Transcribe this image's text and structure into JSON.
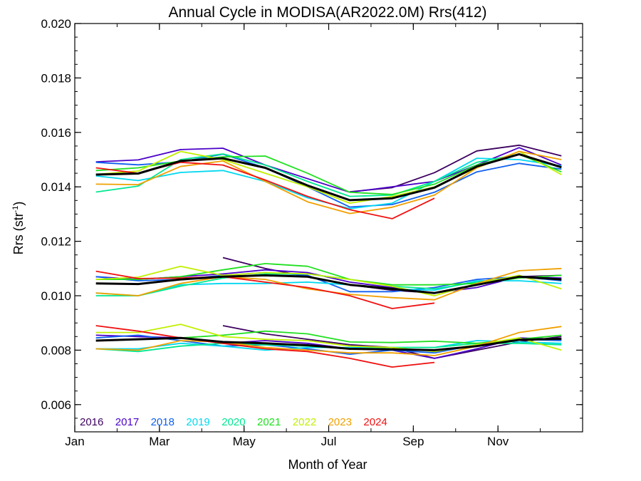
{
  "chart_data": {
    "type": "line",
    "title": "Annual Cycle in MODISA(AR2022.0M) Rrs(412)",
    "xlabel": "Month of Year",
    "ylabel_main": "Rrs (str",
    "ylabel_sup": "-1",
    "ylabel_close": ")",
    "xlim": [
      0.5,
      12.5
    ],
    "ylim": [
      0.005,
      0.02
    ],
    "x_ticks": [
      {
        "value": 0.5,
        "label": "Jan"
      },
      {
        "value": 2.5,
        "label": "Mar"
      },
      {
        "value": 4.5,
        "label": "May"
      },
      {
        "value": 6.5,
        "label": "Jul"
      },
      {
        "value": 8.5,
        "label": "Sep"
      },
      {
        "value": 10.5,
        "label": "Nov"
      }
    ],
    "y_ticks": [
      0.006,
      0.008,
      0.01,
      0.012,
      0.014,
      0.016,
      0.018,
      0.02
    ],
    "y_tick_labels": [
      "0.006",
      "0.008",
      "0.010",
      "0.012",
      "0.014",
      "0.016",
      "0.018",
      "0.020"
    ],
    "x": [
      1,
      2,
      3,
      4,
      5,
      6,
      7,
      8,
      9,
      10,
      11,
      12
    ],
    "groups": [
      {
        "name": "upper",
        "series": [
          {
            "name": "2016",
            "color": "#3d0060",
            "values": [
              null,
              null,
              null,
              null,
              null,
              null,
              0.01382,
              0.01397,
              0.01452,
              0.01532,
              0.01553,
              0.01514
            ]
          },
          {
            "name": "2017",
            "color": "#4a00c8",
            "values": [
              0.01492,
              0.01499,
              0.01537,
              0.01542,
              0.0148,
              0.0143,
              0.0138,
              0.014,
              0.0142,
              0.0148,
              0.01544,
              0.0148
            ]
          },
          {
            "name": "2018",
            "color": "#1060f0",
            "values": [
              0.0149,
              0.01481,
              0.01492,
              0.0152,
              0.0147,
              0.014,
              0.01326,
              0.01335,
              0.0138,
              0.01455,
              0.01486,
              0.01465
            ]
          },
          {
            "name": "2019",
            "color": "#00d8f0",
            "values": [
              0.0144,
              0.01423,
              0.01453,
              0.0146,
              0.0142,
              0.0136,
              0.0132,
              0.0134,
              0.0142,
              0.01505,
              0.015,
              0.01477
            ]
          },
          {
            "name": "2020",
            "color": "#00e890",
            "values": [
              0.01381,
              0.01403,
              0.015,
              0.01521,
              0.0148,
              0.0142,
              0.01365,
              0.0137,
              0.0142,
              0.0149,
              0.0152,
              0.0147
            ]
          },
          {
            "name": "2021",
            "color": "#20e020",
            "values": [
              0.0146,
              0.0147,
              0.01495,
              0.0151,
              0.01513,
              0.0145,
              0.0138,
              0.01372,
              0.0141,
              0.0148,
              0.0152,
              0.01455
            ]
          },
          {
            "name": "2022",
            "color": "#c0f000",
            "values": [
              0.01446,
              0.01458,
              0.0153,
              0.015,
              0.0145,
              0.014,
              0.0134,
              0.01365,
              0.014,
              0.0147,
              0.0153,
              0.01445
            ]
          },
          {
            "name": "2023",
            "color": "#f0a000",
            "values": [
              0.0141,
              0.01408,
              0.01475,
              0.01495,
              0.0142,
              0.01345,
              0.01302,
              0.01325,
              0.0137,
              0.0147,
              0.0153,
              0.015
            ]
          },
          {
            "name": "2024",
            "color": "#f01010",
            "values": [
              0.0147,
              0.0145,
              0.0149,
              0.0148,
              0.01425,
              0.01365,
              0.01316,
              0.01283,
              0.01358,
              null,
              null,
              null
            ]
          },
          {
            "name": "mean",
            "color": "#000000",
            "width": 3,
            "values": [
              0.01445,
              0.01449,
              0.01495,
              0.01505,
              0.0147,
              0.01405,
              0.01351,
              0.01358,
              0.01397,
              0.01475,
              0.0152,
              0.01472
            ]
          }
        ]
      },
      {
        "name": "middle",
        "series": [
          {
            "name": "2016",
            "color": "#3d0060",
            "values": [
              null,
              null,
              null,
              0.0114,
              0.011,
              0.0107,
              0.0104,
              0.0102,
              0.0101,
              0.0104,
              0.0107,
              0.01075
            ]
          },
          {
            "name": "2017",
            "color": "#4a00c8",
            "values": [
              0.0107,
              0.0106,
              0.0107,
              0.0108,
              0.01095,
              0.01085,
              0.0105,
              0.0103,
              0.0101,
              0.0103,
              0.0107,
              0.01065
            ]
          },
          {
            "name": "2018",
            "color": "#1060f0",
            "values": [
              0.0107,
              0.01055,
              0.0106,
              0.01075,
              0.01085,
              0.01075,
              0.01015,
              0.01015,
              0.0103,
              0.0106,
              0.0107,
              0.01055
            ]
          },
          {
            "name": "2019",
            "color": "#00d8f0",
            "values": [
              0.0101,
              0.01,
              0.0104,
              0.01045,
              0.01045,
              0.0105,
              0.0104,
              0.01025,
              0.0102,
              0.01055,
              0.01055,
              0.01045
            ]
          },
          {
            "name": "2020",
            "color": "#00e890",
            "values": [
              0.01,
              0.01,
              0.01035,
              0.01065,
              0.0108,
              0.0108,
              0.0106,
              0.01035,
              0.01025,
              0.0105,
              0.0107,
              0.0106
            ]
          },
          {
            "name": "2021",
            "color": "#20e020",
            "values": [
              0.0106,
              0.0106,
              0.0107,
              0.01095,
              0.01118,
              0.01108,
              0.0106,
              0.0104,
              0.0104,
              0.01045,
              0.01065,
              0.01075
            ]
          },
          {
            "name": "2022",
            "color": "#c0f000",
            "values": [
              0.0106,
              0.01068,
              0.01108,
              0.01075,
              0.01085,
              0.0108,
              0.0106,
              0.01035,
              0.01,
              0.01045,
              0.01075,
              0.01025
            ]
          },
          {
            "name": "2023",
            "color": "#f0a000",
            "values": [
              0.0101,
              0.01,
              0.01045,
              0.0107,
              0.0106,
              0.01025,
              0.01005,
              0.00993,
              0.00985,
              0.01045,
              0.01092,
              0.011
            ]
          },
          {
            "name": "2024",
            "color": "#f01010",
            "values": [
              0.0109,
              0.01063,
              0.01065,
              0.0107,
              0.0105,
              0.0103,
              0.01,
              0.00953,
              0.00973,
              null,
              null,
              null
            ]
          },
          {
            "name": "mean",
            "color": "#000000",
            "width": 3,
            "values": [
              0.01045,
              0.01043,
              0.0106,
              0.0107,
              0.01075,
              0.0107,
              0.0104,
              0.01025,
              0.0101,
              0.0104,
              0.0107,
              0.0106
            ]
          }
        ]
      },
      {
        "name": "lower",
        "series": [
          {
            "name": "2016",
            "color": "#3d0060",
            "values": [
              null,
              null,
              null,
              0.0089,
              0.0086,
              0.0084,
              0.0082,
              0.0081,
              0.0077,
              0.008,
              0.0083,
              0.0085
            ]
          },
          {
            "name": "2017",
            "color": "#4a00c8",
            "values": [
              0.00855,
              0.0085,
              0.00845,
              0.00825,
              0.00835,
              0.00825,
              0.00805,
              0.008,
              0.0077,
              0.00805,
              0.00845,
              0.0084
            ]
          },
          {
            "name": "2018",
            "color": "#1060f0",
            "values": [
              0.00845,
              0.00855,
              0.00835,
              0.00815,
              0.0082,
              0.00805,
              0.00785,
              0.008,
              0.0079,
              0.0082,
              0.0084,
              0.00835
            ]
          },
          {
            "name": "2019",
            "color": "#00d8f0",
            "values": [
              0.00805,
              0.00805,
              0.00825,
              0.00815,
              0.008,
              0.0081,
              0.0081,
              0.0081,
              0.0081,
              0.00835,
              0.0083,
              0.00825
            ]
          },
          {
            "name": "2020",
            "color": "#00e890",
            "values": [
              0.00805,
              0.00795,
              0.00815,
              0.00825,
              0.0082,
              0.00815,
              0.00805,
              0.0081,
              0.0081,
              0.00825,
              0.00825,
              0.0082
            ]
          },
          {
            "name": "2021",
            "color": "#20e020",
            "values": [
              0.00835,
              0.0084,
              0.00845,
              0.00855,
              0.0087,
              0.0086,
              0.0083,
              0.00828,
              0.00833,
              0.00825,
              0.0084,
              0.00855
            ]
          },
          {
            "name": "2022",
            "color": "#c0f000",
            "values": [
              0.00865,
              0.00865,
              0.00895,
              0.0085,
              0.0084,
              0.00835,
              0.00815,
              0.0081,
              0.00795,
              0.0082,
              0.00845,
              0.008
            ]
          },
          {
            "name": "2023",
            "color": "#f0a000",
            "values": [
              0.00805,
              0.008,
              0.00835,
              0.0083,
              0.0081,
              0.008,
              0.0079,
              0.0079,
              0.0078,
              0.00815,
              0.00865,
              0.00887
            ]
          },
          {
            "name": "2024",
            "color": "#f01010",
            "values": [
              0.0089,
              0.0087,
              0.00845,
              0.00825,
              0.00805,
              0.00795,
              0.0077,
              0.00738,
              0.00755,
              null,
              null,
              null
            ]
          },
          {
            "name": "mean",
            "color": "#000000",
            "width": 3,
            "values": [
              0.00835,
              0.0084,
              0.00845,
              0.0083,
              0.00825,
              0.00818,
              0.00805,
              0.00803,
              0.008,
              0.00815,
              0.00838,
              0.00842
            ]
          }
        ]
      }
    ],
    "legend": {
      "placement": "bottom-left",
      "entries": [
        {
          "label": "2016",
          "color": "#3d0060"
        },
        {
          "label": "2017",
          "color": "#4a00c8"
        },
        {
          "label": "2018",
          "color": "#1060f0"
        },
        {
          "label": "2019",
          "color": "#00d8f0"
        },
        {
          "label": "2020",
          "color": "#00e890"
        },
        {
          "label": "2021",
          "color": "#20e020"
        },
        {
          "label": "2022",
          "color": "#c0f000"
        },
        {
          "label": "2023",
          "color": "#f0a000"
        },
        {
          "label": "2024",
          "color": "#f01010"
        }
      ]
    },
    "grid": false
  }
}
